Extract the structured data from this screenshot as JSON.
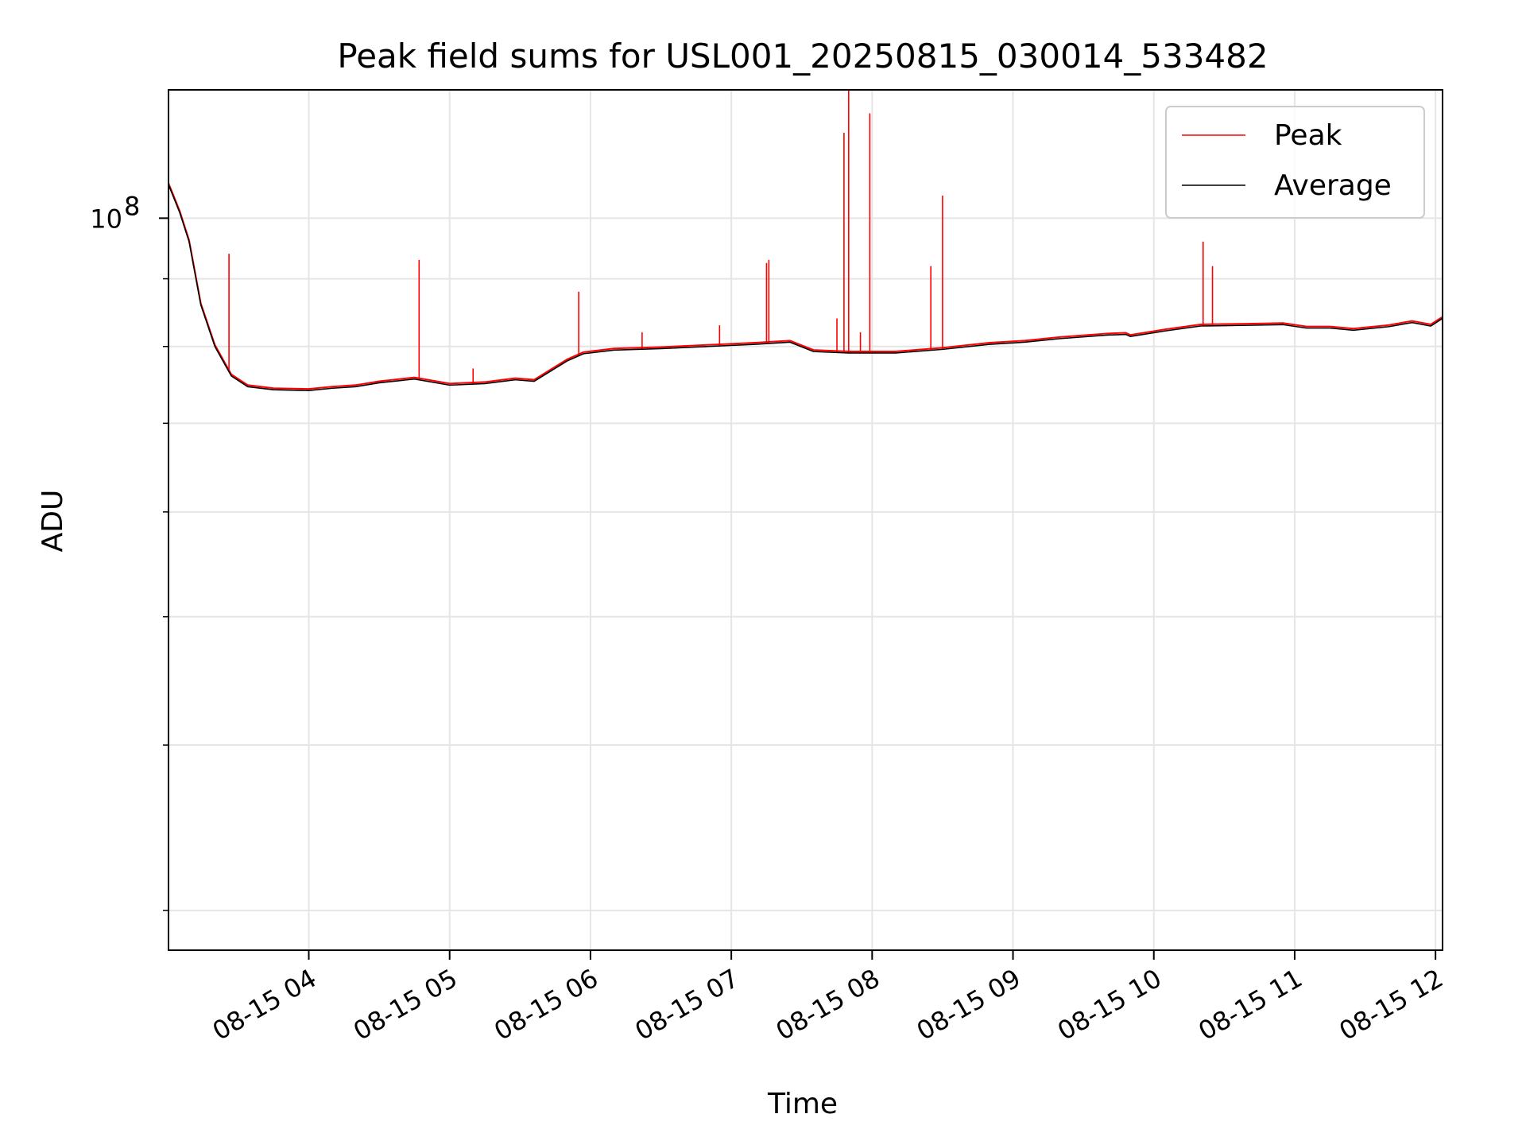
{
  "chart_data": {
    "type": "line",
    "title": "Peak field sums for USL001_20250815_030014_533482",
    "xlabel": "Time",
    "ylabel": "ADU",
    "yscale": "log",
    "grid": true,
    "legend_position": "top-right",
    "xlim": [
      "2025-08-15T03:00:14",
      "2025-08-15T12:03:00"
    ],
    "ylim": [
      28000000,
      125000000
    ],
    "x_tick_labels": [
      "08-15 04",
      "08-15 05",
      "08-15 06",
      "08-15 07",
      "08-15 08",
      "08-15 09",
      "08-15 10",
      "08-15 11",
      "08-15 12"
    ],
    "x_ticks": [
      "2025-08-15T04:00",
      "2025-08-15T05:00",
      "2025-08-15T06:00",
      "2025-08-15T07:00",
      "2025-08-15T08:00",
      "2025-08-15T09:00",
      "2025-08-15T10:00",
      "2025-08-15T11:00",
      "2025-08-15T12:00"
    ],
    "y_major_ticks": [
      {
        "value": 100000000,
        "base": "10",
        "exp": "8"
      }
    ],
    "y_minor_ticks": [
      30000000,
      40000000,
      50000000,
      60000000,
      70000000,
      80000000,
      90000000
    ],
    "series": [
      {
        "name": "Average",
        "color": "#000000",
        "points": [
          [
            "2025-08-15T03:00:14",
            106000000
          ],
          [
            "2025-08-15T03:05",
            101000000
          ],
          [
            "2025-08-15T03:09",
            96000000
          ],
          [
            "2025-08-15T03:14",
            86000000
          ],
          [
            "2025-08-15T03:20",
            80000000
          ],
          [
            "2025-08-15T03:27",
            76000000
          ],
          [
            "2025-08-15T03:34",
            74600000
          ],
          [
            "2025-08-15T03:45",
            74200000
          ],
          [
            "2025-08-15T04:00",
            74100000
          ],
          [
            "2025-08-15T04:10",
            74400000
          ],
          [
            "2025-08-15T04:20",
            74600000
          ],
          [
            "2025-08-15T04:30",
            75100000
          ],
          [
            "2025-08-15T04:45",
            75600000
          ],
          [
            "2025-08-15T05:00",
            74800000
          ],
          [
            "2025-08-15T05:15",
            75000000
          ],
          [
            "2025-08-15T05:28",
            75500000
          ],
          [
            "2025-08-15T05:36",
            75300000
          ],
          [
            "2025-08-15T05:50",
            78000000
          ],
          [
            "2025-08-15T05:57",
            79000000
          ],
          [
            "2025-08-15T06:10",
            79500000
          ],
          [
            "2025-08-15T06:30",
            79700000
          ],
          [
            "2025-08-15T06:50",
            80000000
          ],
          [
            "2025-08-15T07:10",
            80300000
          ],
          [
            "2025-08-15T07:25",
            80600000
          ],
          [
            "2025-08-15T07:35",
            79300000
          ],
          [
            "2025-08-15T07:50",
            79100000
          ],
          [
            "2025-08-15T08:10",
            79100000
          ],
          [
            "2025-08-15T08:30",
            79600000
          ],
          [
            "2025-08-15T08:50",
            80300000
          ],
          [
            "2025-08-15T09:05",
            80600000
          ],
          [
            "2025-08-15T09:20",
            81100000
          ],
          [
            "2025-08-15T09:40",
            81600000
          ],
          [
            "2025-08-15T09:48",
            81700000
          ],
          [
            "2025-08-15T09:50",
            81400000
          ],
          [
            "2025-08-15T10:05",
            82200000
          ],
          [
            "2025-08-15T10:20",
            82900000
          ],
          [
            "2025-08-15T10:40",
            83000000
          ],
          [
            "2025-08-15T10:55",
            83100000
          ],
          [
            "2025-08-15T11:05",
            82600000
          ],
          [
            "2025-08-15T11:15",
            82600000
          ],
          [
            "2025-08-15T11:25",
            82300000
          ],
          [
            "2025-08-15T11:40",
            82800000
          ],
          [
            "2025-08-15T11:50",
            83400000
          ],
          [
            "2025-08-15T11:58",
            82900000
          ],
          [
            "2025-08-15T12:03",
            84000000
          ]
        ]
      },
      {
        "name": "Peak",
        "color": "#ff0000",
        "spikes": [
          [
            "2025-08-15T03:26",
            94000000
          ],
          [
            "2025-08-15T04:47",
            93000000
          ],
          [
            "2025-08-15T05:10",
            77000000
          ],
          [
            "2025-08-15T05:55",
            88000000
          ],
          [
            "2025-08-15T06:22",
            82000000
          ],
          [
            "2025-08-15T06:55",
            83000000
          ],
          [
            "2025-08-15T07:15",
            92500000
          ],
          [
            "2025-08-15T07:16",
            93000000
          ],
          [
            "2025-08-15T07:45",
            84000000
          ],
          [
            "2025-08-15T07:48",
            116000000
          ],
          [
            "2025-08-15T07:50",
            125000000
          ],
          [
            "2025-08-15T07:55",
            82000000
          ],
          [
            "2025-08-15T07:59",
            120000000
          ],
          [
            "2025-08-15T08:25",
            92000000
          ],
          [
            "2025-08-15T08:30",
            104000000
          ],
          [
            "2025-08-15T10:21",
            96000000
          ],
          [
            "2025-08-15T10:25",
            92000000
          ]
        ]
      }
    ]
  }
}
